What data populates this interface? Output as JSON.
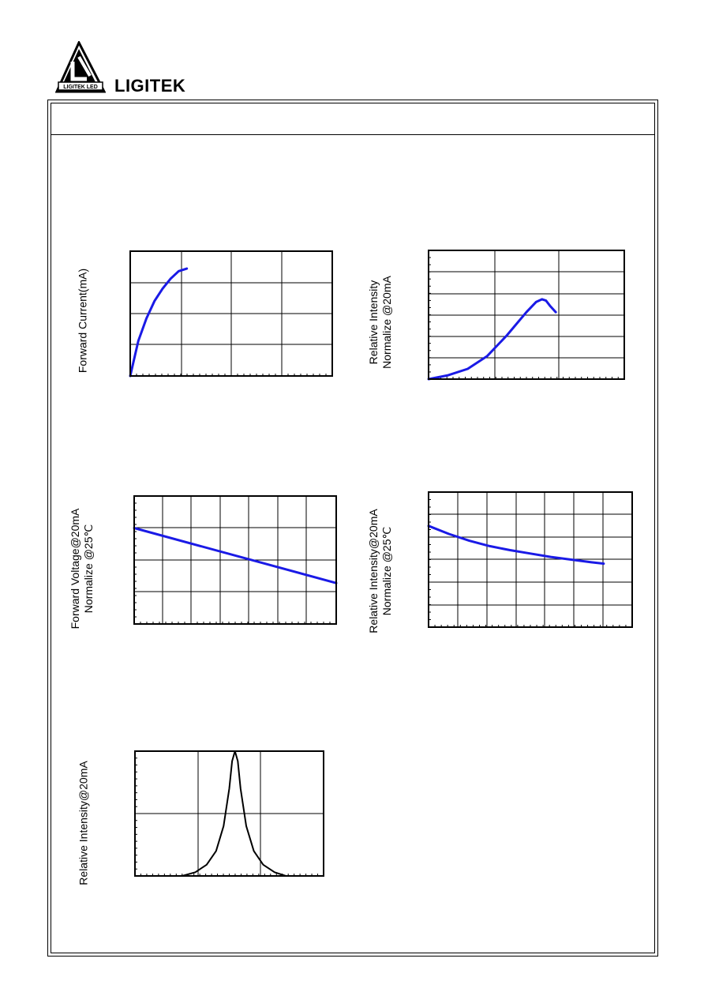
{
  "header": {
    "brand_name": "LIGITEK",
    "logo_text": "LIGITEK LED",
    "section_title": ""
  },
  "colors": {
    "curve": "#1a1ae6",
    "spectrum": "#000000",
    "frame": "#000000",
    "grid": "#000000"
  },
  "chart_data": [
    {
      "id": "forward-current-vs-voltage",
      "type": "line",
      "ylabel": "Forward Current(mA)",
      "xlabel": "",
      "yscale": "log",
      "grid": true,
      "x": [
        0.0,
        0.04,
        0.08,
        0.12,
        0.16,
        0.2,
        0.24,
        0.28
      ],
      "y": [
        0.0,
        0.28,
        0.46,
        0.6,
        0.7,
        0.78,
        0.84,
        0.86
      ]
    },
    {
      "id": "relative-intensity-vs-current",
      "type": "line",
      "ylabel_lines": [
        "Relative Intensity",
        "Normalize @20mA"
      ],
      "xlabel": "",
      "xscale": "log",
      "grid": true,
      "x": [
        0.0,
        0.1,
        0.2,
        0.3,
        0.4,
        0.45,
        0.5,
        0.55,
        0.58,
        0.6,
        0.62,
        0.65
      ],
      "y": [
        0.0,
        0.03,
        0.08,
        0.18,
        0.34,
        0.43,
        0.52,
        0.6,
        0.62,
        0.61,
        0.57,
        0.52
      ]
    },
    {
      "id": "forward-voltage-vs-temperature",
      "type": "line",
      "ylabel_lines": [
        "Forward Voltage@20mA",
        "Normalize @25℃"
      ],
      "xlabel": "",
      "grid": true,
      "x": [
        0.0,
        1.0
      ],
      "y": [
        0.75,
        0.32
      ]
    },
    {
      "id": "relative-intensity-vs-temperature",
      "type": "line",
      "ylabel_lines": [
        "Relative Intensity@20mA",
        "Normalize @25℃"
      ],
      "xlabel": "",
      "grid": true,
      "x": [
        0.0,
        0.1,
        0.2,
        0.3,
        0.4,
        0.5,
        0.6,
        0.7,
        0.8,
        0.86
      ],
      "y": [
        0.75,
        0.69,
        0.64,
        0.6,
        0.57,
        0.545,
        0.52,
        0.5,
        0.48,
        0.47
      ]
    },
    {
      "id": "spectral-distribution",
      "type": "line",
      "ylabel": "Relative Intensity@20mA",
      "xlabel": "",
      "grid": true,
      "x": [
        0.25,
        0.32,
        0.38,
        0.43,
        0.47,
        0.5,
        0.515,
        0.53,
        0.545,
        0.56,
        0.59,
        0.63,
        0.68,
        0.74,
        0.8
      ],
      "y": [
        0.0,
        0.03,
        0.09,
        0.2,
        0.4,
        0.7,
        0.92,
        1.0,
        0.92,
        0.7,
        0.4,
        0.2,
        0.09,
        0.03,
        0.0
      ]
    }
  ]
}
